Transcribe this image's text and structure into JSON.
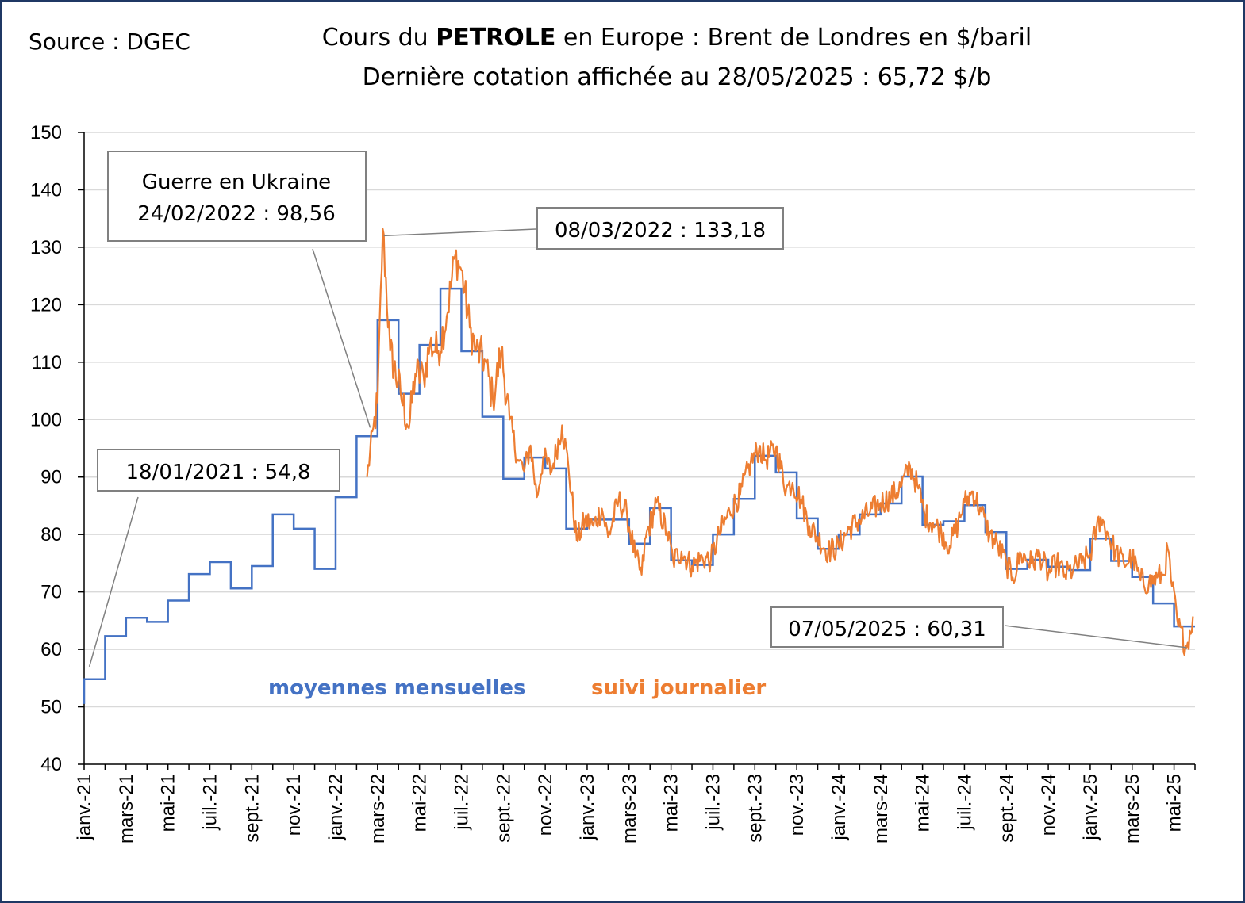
{
  "source": "Source : DGEC",
  "title": {
    "prefix": "Cours du ",
    "bold": "PETROLE",
    "suffix": " en Europe : Brent de Londres en $/baril",
    "line2": "Dernière cotation affichée au 28/05/2025 : 65,72 $/b"
  },
  "legend": {
    "monthly": "moyennes mensuelles",
    "daily": "suivi journalier"
  },
  "colors": {
    "monthly": "#4472c4",
    "daily": "#ed7d31",
    "grid": "#d9d9d9",
    "frame": "#1f3864"
  },
  "annotations": [
    {
      "id": "ann-2021",
      "text": "18/01/2021 : 54,8"
    },
    {
      "id": "ann-ukraine",
      "line1": "Guerre en Ukraine",
      "line2": "24/02/2022 : 98,56"
    },
    {
      "id": "ann-peak",
      "text": "08/03/2022 : 133,18"
    },
    {
      "id": "ann-low",
      "text": "07/05/2025 : 60,31"
    }
  ],
  "chart_data": {
    "type": "line",
    "title": "Cours du PETROLE en Europe : Brent de Londres en $/baril",
    "xlabel": "",
    "ylabel": "",
    "ylim": [
      40,
      150
    ],
    "yticks": [
      40,
      50,
      60,
      70,
      80,
      90,
      100,
      110,
      120,
      130,
      140,
      150
    ],
    "grid": true,
    "x_tick_labels": [
      "janv.-21",
      "mars-21",
      "mai-21",
      "juil.-21",
      "sept.-21",
      "nov.-21",
      "janv.-22",
      "mars-22",
      "mai-22",
      "juil.-22",
      "sept.-22",
      "nov.-22",
      "janv.-23",
      "mars-23",
      "mai-23",
      "juil.-23",
      "sept.-23",
      "nov.-23",
      "janv.-24",
      "mars-24",
      "mai-24",
      "juil.-24",
      "sept.-24",
      "nov.-24",
      "janv.-25",
      "mars-25",
      "mai-25"
    ],
    "x_unit": "months since janv.-21",
    "series": [
      {
        "name": "moyennes mensuelles",
        "kind": "step",
        "months": [
          "2021-01",
          "2021-02",
          "2021-03",
          "2021-04",
          "2021-05",
          "2021-06",
          "2021-07",
          "2021-08",
          "2021-09",
          "2021-10",
          "2021-11",
          "2021-12",
          "2022-01",
          "2022-02",
          "2022-03",
          "2022-04",
          "2022-05",
          "2022-06",
          "2022-07",
          "2022-08",
          "2022-09",
          "2022-10",
          "2022-11",
          "2022-12",
          "2023-01",
          "2023-02",
          "2023-03",
          "2023-04",
          "2023-05",
          "2023-06",
          "2023-07",
          "2023-08",
          "2023-09",
          "2023-10",
          "2023-11",
          "2023-12",
          "2024-01",
          "2024-02",
          "2024-03",
          "2024-04",
          "2024-05",
          "2024-06",
          "2024-07",
          "2024-08",
          "2024-09",
          "2024-10",
          "2024-11",
          "2024-12",
          "2025-01",
          "2025-02",
          "2025-03",
          "2025-04",
          "2025-05"
        ],
        "values": [
          54.8,
          62.3,
          65.5,
          64.8,
          68.5,
          73.1,
          75.2,
          70.6,
          74.5,
          83.5,
          81.0,
          74.0,
          86.5,
          97.1,
          117.3,
          104.5,
          113.0,
          122.8,
          111.9,
          100.5,
          89.7,
          93.4,
          91.5,
          81.0,
          82.6,
          82.6,
          78.4,
          84.6,
          75.5,
          74.7,
          80.0,
          86.2,
          93.7,
          90.8,
          82.8,
          77.5,
          80.0,
          83.5,
          85.4,
          90.1,
          81.7,
          82.3,
          85.1,
          80.4,
          74.0,
          75.6,
          74.4,
          73.8,
          79.3,
          75.4,
          72.6,
          68.0,
          64.0
        ]
      },
      {
        "name": "suivi journalier",
        "kind": "daily",
        "start_month_index": 13.5,
        "end_month_index": 52.9,
        "anchors": [
          [
            13.5,
            90.0
          ],
          [
            13.8,
            98.56
          ],
          [
            14.0,
            103
          ],
          [
            14.25,
            133.18
          ],
          [
            14.6,
            112
          ],
          [
            15.1,
            104.5
          ],
          [
            15.5,
            98.5
          ],
          [
            15.8,
            108.0
          ],
          [
            16.2,
            107.5
          ],
          [
            16.5,
            113.0
          ],
          [
            16.9,
            112.0
          ],
          [
            17.3,
            118.0
          ],
          [
            17.7,
            128.5
          ],
          [
            18.0,
            126.0
          ],
          [
            18.4,
            116.0
          ],
          [
            18.7,
            112.0
          ],
          [
            19.1,
            110.5
          ],
          [
            19.5,
            103.5
          ],
          [
            19.9,
            112.0
          ],
          [
            20.3,
            100.0
          ],
          [
            20.7,
            93.0
          ],
          [
            21.0,
            91.0
          ],
          [
            21.3,
            95.5
          ],
          [
            21.6,
            86.5
          ],
          [
            21.9,
            93.5
          ],
          [
            22.3,
            91.0
          ],
          [
            22.8,
            99.0
          ],
          [
            23.1,
            92.0
          ],
          [
            23.5,
            79.0
          ],
          [
            23.9,
            82.5
          ],
          [
            24.3,
            81.5
          ],
          [
            24.7,
            84.5
          ],
          [
            25.0,
            79.5
          ],
          [
            25.5,
            86.0
          ],
          [
            25.9,
            83.5
          ],
          [
            26.3,
            76.0
          ],
          [
            26.6,
            73.0
          ],
          [
            26.8,
            79.5
          ],
          [
            27.3,
            85.5
          ],
          [
            27.8,
            80.5
          ],
          [
            28.1,
            75.5
          ],
          [
            28.5,
            77.0
          ],
          [
            29.0,
            74.5
          ],
          [
            29.5,
            76.0
          ],
          [
            29.9,
            75.5
          ],
          [
            30.3,
            80.0
          ],
          [
            30.8,
            84.0
          ],
          [
            31.3,
            87.0
          ],
          [
            31.8,
            92.5
          ],
          [
            32.2,
            95.0
          ],
          [
            32.5,
            93.0
          ],
          [
            33.0,
            95.0
          ],
          [
            33.5,
            88.0
          ],
          [
            33.8,
            89.0
          ],
          [
            34.2,
            86.0
          ],
          [
            34.6,
            81.5
          ],
          [
            35.0,
            79.5
          ],
          [
            35.5,
            77.0
          ],
          [
            36.0,
            78.0
          ],
          [
            36.5,
            81.0
          ],
          [
            37.0,
            82.5
          ],
          [
            37.5,
            84.0
          ],
          [
            38.0,
            85.5
          ],
          [
            38.5,
            86.5
          ],
          [
            39.0,
            88.5
          ],
          [
            39.4,
            92.0
          ],
          [
            39.8,
            88.0
          ],
          [
            40.1,
            83.5
          ],
          [
            40.5,
            82.0
          ],
          [
            40.9,
            80.5
          ],
          [
            41.3,
            78.0
          ],
          [
            41.7,
            82.0
          ],
          [
            42.0,
            85.5
          ],
          [
            42.4,
            87.5
          ],
          [
            42.8,
            84.0
          ],
          [
            43.2,
            80.0
          ],
          [
            43.6,
            78.0
          ],
          [
            44.0,
            75.0
          ],
          [
            44.3,
            72.5
          ],
          [
            44.7,
            76.5
          ],
          [
            45.2,
            75.0
          ],
          [
            45.6,
            76.5
          ],
          [
            46.0,
            73.0
          ],
          [
            46.4,
            75.0
          ],
          [
            46.8,
            73.0
          ],
          [
            47.2,
            74.0
          ],
          [
            47.6,
            75.0
          ],
          [
            48.0,
            76.5
          ],
          [
            48.3,
            81.0
          ],
          [
            48.5,
            83.0
          ],
          [
            48.8,
            80.5
          ],
          [
            49.2,
            77.0
          ],
          [
            49.6,
            75.0
          ],
          [
            50.0,
            76.0
          ],
          [
            50.4,
            72.0
          ],
          [
            50.8,
            71.5
          ],
          [
            51.2,
            72.5
          ],
          [
            51.5,
            73.0
          ],
          [
            51.7,
            77.5
          ],
          [
            51.9,
            71.0
          ],
          [
            52.2,
            64.0
          ],
          [
            52.6,
            60.31
          ],
          [
            52.9,
            65.72
          ]
        ]
      }
    ]
  }
}
